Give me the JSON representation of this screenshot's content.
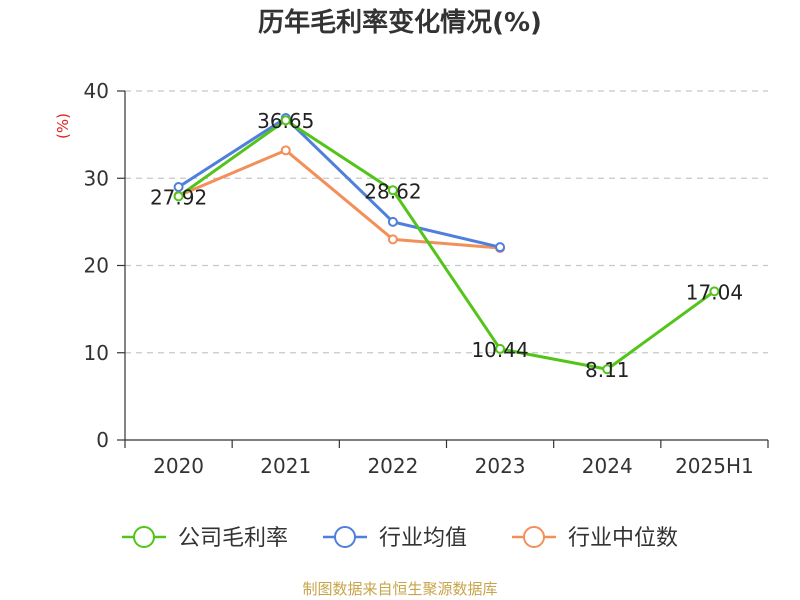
{
  "chart_data": {
    "type": "line",
    "title": "历年毛利率变化情况(%)",
    "ylabel": "(%)",
    "xlabel": "",
    "categories": [
      "2020",
      "2021",
      "2022",
      "2023",
      "2024",
      "2025H1"
    ],
    "ylim": [
      0,
      40
    ],
    "yticks": [
      0,
      10,
      20,
      30,
      40
    ],
    "grid": true,
    "legend_position": "bottom",
    "series": [
      {
        "name": "公司毛利率",
        "color": "#52c41a",
        "values": [
          27.92,
          36.65,
          28.62,
          10.44,
          8.11,
          17.04
        ],
        "labels": [
          "27.92",
          "36.65",
          "28.62",
          "10.44",
          "8.11",
          "17.04"
        ]
      },
      {
        "name": "行业均值",
        "color": "#4f7fdd",
        "values": [
          29.0,
          36.9,
          25.0,
          22.1,
          null,
          null
        ]
      },
      {
        "name": "行业中位数",
        "color": "#f2905a",
        "values": [
          28.0,
          33.2,
          23.0,
          22.0,
          null,
          null
        ]
      }
    ]
  },
  "footer": "制图数据来自恒生聚源数据库"
}
